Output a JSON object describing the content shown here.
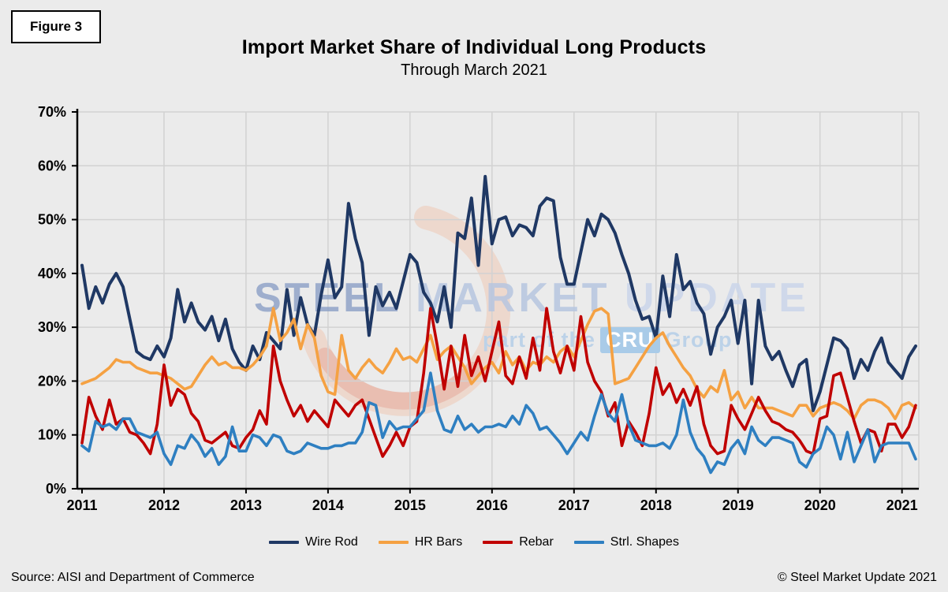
{
  "figure_label": "Figure 3",
  "header": {
    "title": "Import Market Share of Individual Long Products",
    "subtitle": "Through March 2021"
  },
  "watermark": {
    "word1": "STEEL",
    "word2": "MARKET",
    "word3": "UPDATE",
    "tagline_prefix": "part of the",
    "tagline_box": "CRU",
    "tagline_suffix": "Group"
  },
  "footer": {
    "source": "Source: AISI and Department of Commerce",
    "copyright": "© Steel Market Update 2021"
  },
  "colors": {
    "background": "#ebebeb",
    "gridline": "#d2d2d2",
    "axis": "#000000",
    "wire_rod": "#1f3864",
    "hr_bars": "#f5a142",
    "rebar": "#c00000",
    "strl_shapes": "#2e7fc1",
    "watermark_swoosh_outer": "#efc6b0",
    "watermark_swoosh_inner": "#e59f90"
  },
  "chart_data": {
    "type": "line",
    "title": "Import Market Share of Individual Long Products",
    "subtitle": "Through March 2021",
    "unit": "%",
    "grid": true,
    "legend_position": "bottom",
    "ylim": [
      0,
      70
    ],
    "y_tick_step": 10,
    "y_tick_labels": [
      "0%",
      "10%",
      "20%",
      "30%",
      "40%",
      "50%",
      "60%",
      "70%"
    ],
    "x": {
      "start": "2011-01",
      "end": "2021-03",
      "frequency": "monthly",
      "points": 123
    },
    "x_tick_labels": [
      "2011",
      "2012",
      "2013",
      "2014",
      "2015",
      "2016",
      "2017",
      "2018",
      "2019",
      "2020",
      "2021"
    ],
    "series": [
      {
        "name": "Wire Rod",
        "color": "#1f3864",
        "values": [
          41.5,
          33.5,
          37.5,
          34.5,
          38,
          40,
          37.5,
          31.5,
          25.5,
          24.5,
          24,
          26.5,
          24.5,
          28,
          37,
          31,
          34.5,
          31,
          29.5,
          32,
          27.5,
          31.5,
          26,
          23.5,
          22,
          26.5,
          24,
          29,
          27.5,
          26,
          37,
          28.5,
          35.5,
          30.5,
          28.5,
          36,
          42.5,
          35.5,
          37.5,
          53,
          46.5,
          42,
          28.5,
          37.5,
          34,
          36.5,
          33.5,
          38.5,
          43.5,
          42,
          36.5,
          34.5,
          31,
          37.5,
          30,
          47.5,
          46.5,
          54,
          41.5,
          58,
          45.5,
          50,
          50.5,
          47,
          49,
          48.5,
          47,
          52.5,
          54,
          53.5,
          43,
          38,
          38,
          44,
          50,
          47,
          51,
          50,
          47.5,
          43.5,
          40,
          35,
          31.5,
          32,
          28,
          39.5,
          32,
          43.5,
          37,
          38.5,
          34.5,
          32.5,
          25,
          30,
          32,
          35,
          27,
          35,
          19.5,
          35,
          26.5,
          24,
          25.5,
          22,
          19,
          23,
          24,
          14.5,
          18,
          23,
          28,
          27.5,
          26,
          20.5,
          24,
          22,
          25.5,
          28,
          23.5,
          22,
          20.5,
          24.5,
          26.5
        ]
      },
      {
        "name": "HR Bars",
        "color": "#f5a142",
        "values": [
          19.5,
          20,
          20.5,
          21.5,
          22.5,
          24,
          23.5,
          23.5,
          22.5,
          22,
          21.5,
          21.5,
          21,
          20.5,
          19.5,
          18.5,
          19,
          21,
          23,
          24.5,
          23,
          23.5,
          22.5,
          22.5,
          22,
          23,
          24.5,
          26.5,
          33.5,
          27.5,
          29,
          31.5,
          26,
          30.5,
          28,
          21,
          18,
          17.5,
          28.5,
          22,
          20.5,
          22.5,
          24,
          22.5,
          21.5,
          23.5,
          26,
          24,
          24.5,
          23.5,
          26,
          28.5,
          24,
          25.5,
          26.5,
          24.5,
          22.5,
          19.5,
          21,
          22.5,
          23.5,
          21.5,
          25.5,
          23,
          24.5,
          22,
          23.5,
          23,
          24.5,
          23.5,
          25.5,
          26.5,
          24.5,
          27.5,
          30.5,
          33,
          33.5,
          32.5,
          19.5,
          20,
          20.5,
          22.5,
          24.5,
          26.5,
          28,
          29,
          26.5,
          24.5,
          22.5,
          21,
          18.5,
          17,
          19,
          18,
          22,
          16.5,
          18,
          15,
          17,
          15,
          15,
          15,
          14.5,
          14,
          13.5,
          15.5,
          15.5,
          13.5,
          15,
          15.5,
          16,
          15.5,
          14.5,
          13,
          15.5,
          16.5,
          16.5,
          16,
          15,
          13,
          15.5,
          16,
          15
        ]
      },
      {
        "name": "Rebar",
        "color": "#c00000",
        "values": [
          8.5,
          17,
          13.5,
          11,
          16.5,
          12,
          13,
          10.5,
          10,
          8.5,
          6.5,
          12,
          23,
          15.5,
          18.5,
          17.5,
          14,
          12.5,
          9,
          8.5,
          9.5,
          10.5,
          8,
          7.5,
          9.5,
          11,
          14.5,
          12,
          26.5,
          20,
          16.5,
          13.5,
          15.5,
          12.5,
          14.5,
          13,
          11.5,
          16.5,
          15,
          13.5,
          15.5,
          16.5,
          13,
          9.5,
          6,
          8,
          10.5,
          8,
          11.5,
          12.5,
          21.5,
          33.5,
          26.5,
          18.5,
          26.5,
          19,
          28.5,
          21,
          24.5,
          20,
          25.5,
          31,
          21,
          19.5,
          24.5,
          20.5,
          28,
          22,
          33.5,
          25.5,
          21.5,
          26.5,
          22,
          32,
          23.5,
          20,
          18,
          13.5,
          16,
          8,
          12.5,
          10.5,
          8,
          14,
          22.5,
          17.5,
          19.5,
          16,
          18.5,
          15.5,
          19,
          12,
          8,
          6.5,
          7,
          15.5,
          13,
          11,
          14,
          17,
          14.5,
          12.5,
          12,
          11,
          10.5,
          9,
          7,
          6.5,
          13,
          13.5,
          21,
          21.5,
          17,
          12.5,
          8.5,
          11,
          10.5,
          7,
          12,
          12,
          9.5,
          11.5,
          15.5
        ]
      },
      {
        "name": "Strl. Shapes",
        "color": "#2e7fc1",
        "values": [
          8,
          7,
          12.5,
          11.5,
          12,
          11,
          13,
          13,
          10.5,
          10,
          9.5,
          10.5,
          6.5,
          4.5,
          8,
          7.5,
          10,
          8.5,
          6,
          7.5,
          4.5,
          6,
          11.5,
          7,
          7,
          10,
          9.5,
          8,
          10,
          9.5,
          7,
          6.5,
          7,
          8.5,
          8,
          7.5,
          7.5,
          8,
          8,
          8.5,
          8.5,
          10.5,
          16,
          15.5,
          9.5,
          12.5,
          11,
          11.5,
          11.5,
          13,
          14.5,
          21.5,
          14.5,
          11,
          10.5,
          13.5,
          11,
          12,
          10.5,
          11.5,
          11.5,
          12,
          11.5,
          13.5,
          12,
          15.5,
          14,
          11,
          11.5,
          10,
          8.5,
          6.5,
          8.5,
          10.5,
          9,
          13.5,
          17.5,
          14,
          12.5,
          17.5,
          12,
          9,
          8.5,
          8,
          8,
          8.5,
          7.5,
          10,
          16.5,
          10.5,
          7.5,
          6,
          3,
          5,
          4.5,
          7.5,
          9,
          6.5,
          11.5,
          9,
          8,
          9.5,
          9.5,
          9,
          8.5,
          5,
          4,
          6.5,
          7.5,
          11.5,
          10,
          5.5,
          10.5,
          5,
          8,
          11,
          5,
          8,
          8.5,
          8.5,
          8.5,
          8.5,
          5.5
        ]
      }
    ]
  }
}
